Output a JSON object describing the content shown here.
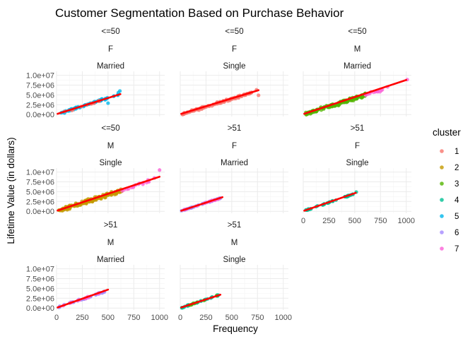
{
  "chart_data": {
    "type": "scatter",
    "title": "Customer Segmentation Based on Purchase Behavior",
    "xlabel": "Frequency",
    "ylabel": "Lifetime Value (in dollars)",
    "xlim": [
      0,
      1050
    ],
    "ylim": [
      -500000,
      11000000
    ],
    "x_ticks": [
      0,
      250,
      500,
      750,
      1000
    ],
    "x_tick_labels": [
      "0",
      "250",
      "500",
      "750",
      "1000"
    ],
    "y_ticks": [
      0,
      2500000,
      5000000,
      7500000,
      10000000
    ],
    "y_tick_labels": [
      "0.0e+00",
      "2.5e+06",
      "5.0e+06",
      "7.5e+06",
      "1.0e+07"
    ],
    "grid": true,
    "legend": {
      "title": "cluster",
      "position": "right",
      "entries": [
        "1",
        "2",
        "3",
        "4",
        "5",
        "6",
        "7"
      ]
    },
    "cluster_colors": {
      "1": "#F8766D",
      "2": "#C49A00",
      "3": "#53B400",
      "4": "#00C094",
      "5": "#00B6EB",
      "6": "#A58AFF",
      "7": "#FB61D7"
    },
    "trend_color": "#FF0000",
    "panels": [
      {
        "strips": [
          "<=50",
          "F",
          "Married"
        ],
        "trend": [
          [
            10,
            200000
          ],
          [
            620,
            5200000
          ]
        ],
        "point_groups": [
          {
            "cluster": "5",
            "x_range": [
              20,
              610
            ],
            "slope": 8500,
            "spread": 350000,
            "n": 70
          },
          {
            "cluster": "1",
            "x_range": [
              40,
              420
            ],
            "slope": 8200,
            "spread": 250000,
            "n": 12
          }
        ],
        "extra_points": [
          {
            "cluster": "5",
            "x": 615,
            "y": 6000000
          },
          {
            "cluster": "5",
            "x": 500,
            "y": 2900000
          },
          {
            "cluster": "5",
            "x": 600,
            "y": 5600000
          }
        ]
      },
      {
        "strips": [
          "<=50",
          "F",
          "Single"
        ],
        "trend": [
          [
            10,
            200000
          ],
          [
            760,
            6200000
          ]
        ],
        "point_groups": [
          {
            "cluster": "1",
            "x_range": [
              20,
              700
            ],
            "slope": 8000,
            "spread": 400000,
            "n": 110
          }
        ],
        "extra_points": [
          {
            "cluster": "1",
            "x": 760,
            "y": 4900000
          },
          {
            "cluster": "1",
            "x": 740,
            "y": 6300000
          }
        ]
      },
      {
        "strips": [
          "<=50",
          "M",
          "Married"
        ],
        "trend": [
          [
            10,
            200000
          ],
          [
            1000,
            8800000
          ]
        ],
        "point_groups": [
          {
            "cluster": "3",
            "x_range": [
              20,
              620
            ],
            "slope": 8300,
            "spread": 600000,
            "n": 170
          },
          {
            "cluster": "7",
            "x_range": [
              560,
              820
            ],
            "slope": 8300,
            "spread": 500000,
            "n": 14
          }
        ],
        "extra_points": [
          {
            "cluster": "7",
            "x": 1010,
            "y": 8900000
          }
        ]
      },
      {
        "strips": [
          "<=50",
          "M",
          "Single"
        ],
        "trend": [
          [
            10,
            200000
          ],
          [
            1000,
            8800000
          ]
        ],
        "point_groups": [
          {
            "cluster": "2",
            "x_range": [
              20,
              640
            ],
            "slope": 8400,
            "spread": 650000,
            "n": 180
          },
          {
            "cluster": "7",
            "x_range": [
              620,
              900
            ],
            "slope": 8600,
            "spread": 700000,
            "n": 16
          }
        ],
        "extra_points": [
          {
            "cluster": "7",
            "x": 1000,
            "y": 10500000
          },
          {
            "cluster": "7",
            "x": 950,
            "y": 8500000
          }
        ]
      },
      {
        "strips": [
          ">51",
          "F",
          "Married"
        ],
        "trend": [
          [
            10,
            150000
          ],
          [
            410,
            3600000
          ]
        ],
        "point_groups": [
          {
            "cluster": "6",
            "x_range": [
              10,
              400
            ],
            "slope": 8600,
            "spread": 180000,
            "n": 35
          },
          {
            "cluster": "7",
            "x_range": [
              30,
              380
            ],
            "slope": 8600,
            "spread": 180000,
            "n": 12
          }
        ],
        "extra_points": []
      },
      {
        "strips": [
          ">51",
          "F",
          "Single"
        ],
        "trend": [
          [
            10,
            150000
          ],
          [
            510,
            4700000
          ]
        ],
        "point_groups": [
          {
            "cluster": "4",
            "x_range": [
              10,
              500
            ],
            "slope": 9000,
            "spread": 200000,
            "n": 40
          }
        ],
        "extra_points": [
          {
            "cluster": "4",
            "x": 515,
            "y": 4900000
          }
        ]
      },
      {
        "strips": [
          ">51",
          "M",
          "Married"
        ],
        "trend": [
          [
            10,
            150000
          ],
          [
            500,
            4700000
          ]
        ],
        "point_groups": [
          {
            "cluster": "6",
            "x_range": [
              20,
              480
            ],
            "slope": 9000,
            "spread": 350000,
            "n": 32
          },
          {
            "cluster": "7",
            "x_range": [
              30,
              470
            ],
            "slope": 9000,
            "spread": 350000,
            "n": 12
          }
        ],
        "extra_points": []
      },
      {
        "strips": [
          ">51",
          "M",
          "Single"
        ],
        "trend": [
          [
            10,
            150000
          ],
          [
            390,
            3400000
          ]
        ],
        "point_groups": [
          {
            "cluster": "4",
            "x_range": [
              10,
              380
            ],
            "slope": 8800,
            "spread": 250000,
            "n": 30
          },
          {
            "cluster": "3",
            "x_range": [
              40,
              360
            ],
            "slope": 8800,
            "spread": 250000,
            "n": 8
          }
        ],
        "extra_points": []
      }
    ]
  }
}
